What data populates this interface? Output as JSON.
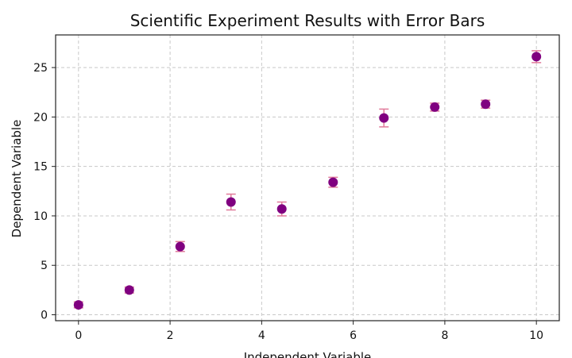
{
  "chart_data": {
    "type": "scatter",
    "title": "Scientific Experiment Results with Error Bars",
    "xlabel": "Independent Variable",
    "ylabel": "Dependent Variable",
    "xlim": [
      -0.5,
      10.5
    ],
    "ylim": [
      -0.6,
      28.3
    ],
    "xticks": [
      0,
      2,
      4,
      6,
      8,
      10
    ],
    "yticks": [
      0,
      5,
      10,
      15,
      20,
      25
    ],
    "grid": true,
    "marker_color": "#800080",
    "errorbar_color": "#e07a9a",
    "points": [
      {
        "x": 0.0,
        "y": 1.0,
        "err": 0.3
      },
      {
        "x": 1.11,
        "y": 2.5,
        "err": 0.3
      },
      {
        "x": 2.22,
        "y": 6.9,
        "err": 0.5
      },
      {
        "x": 3.33,
        "y": 11.4,
        "err": 0.8
      },
      {
        "x": 4.44,
        "y": 10.7,
        "err": 0.7
      },
      {
        "x": 5.56,
        "y": 13.4,
        "err": 0.5
      },
      {
        "x": 6.67,
        "y": 19.9,
        "err": 0.9
      },
      {
        "x": 7.78,
        "y": 21.0,
        "err": 0.4
      },
      {
        "x": 8.89,
        "y": 21.3,
        "err": 0.4
      },
      {
        "x": 10.0,
        "y": 26.1,
        "err": 0.6
      }
    ]
  }
}
